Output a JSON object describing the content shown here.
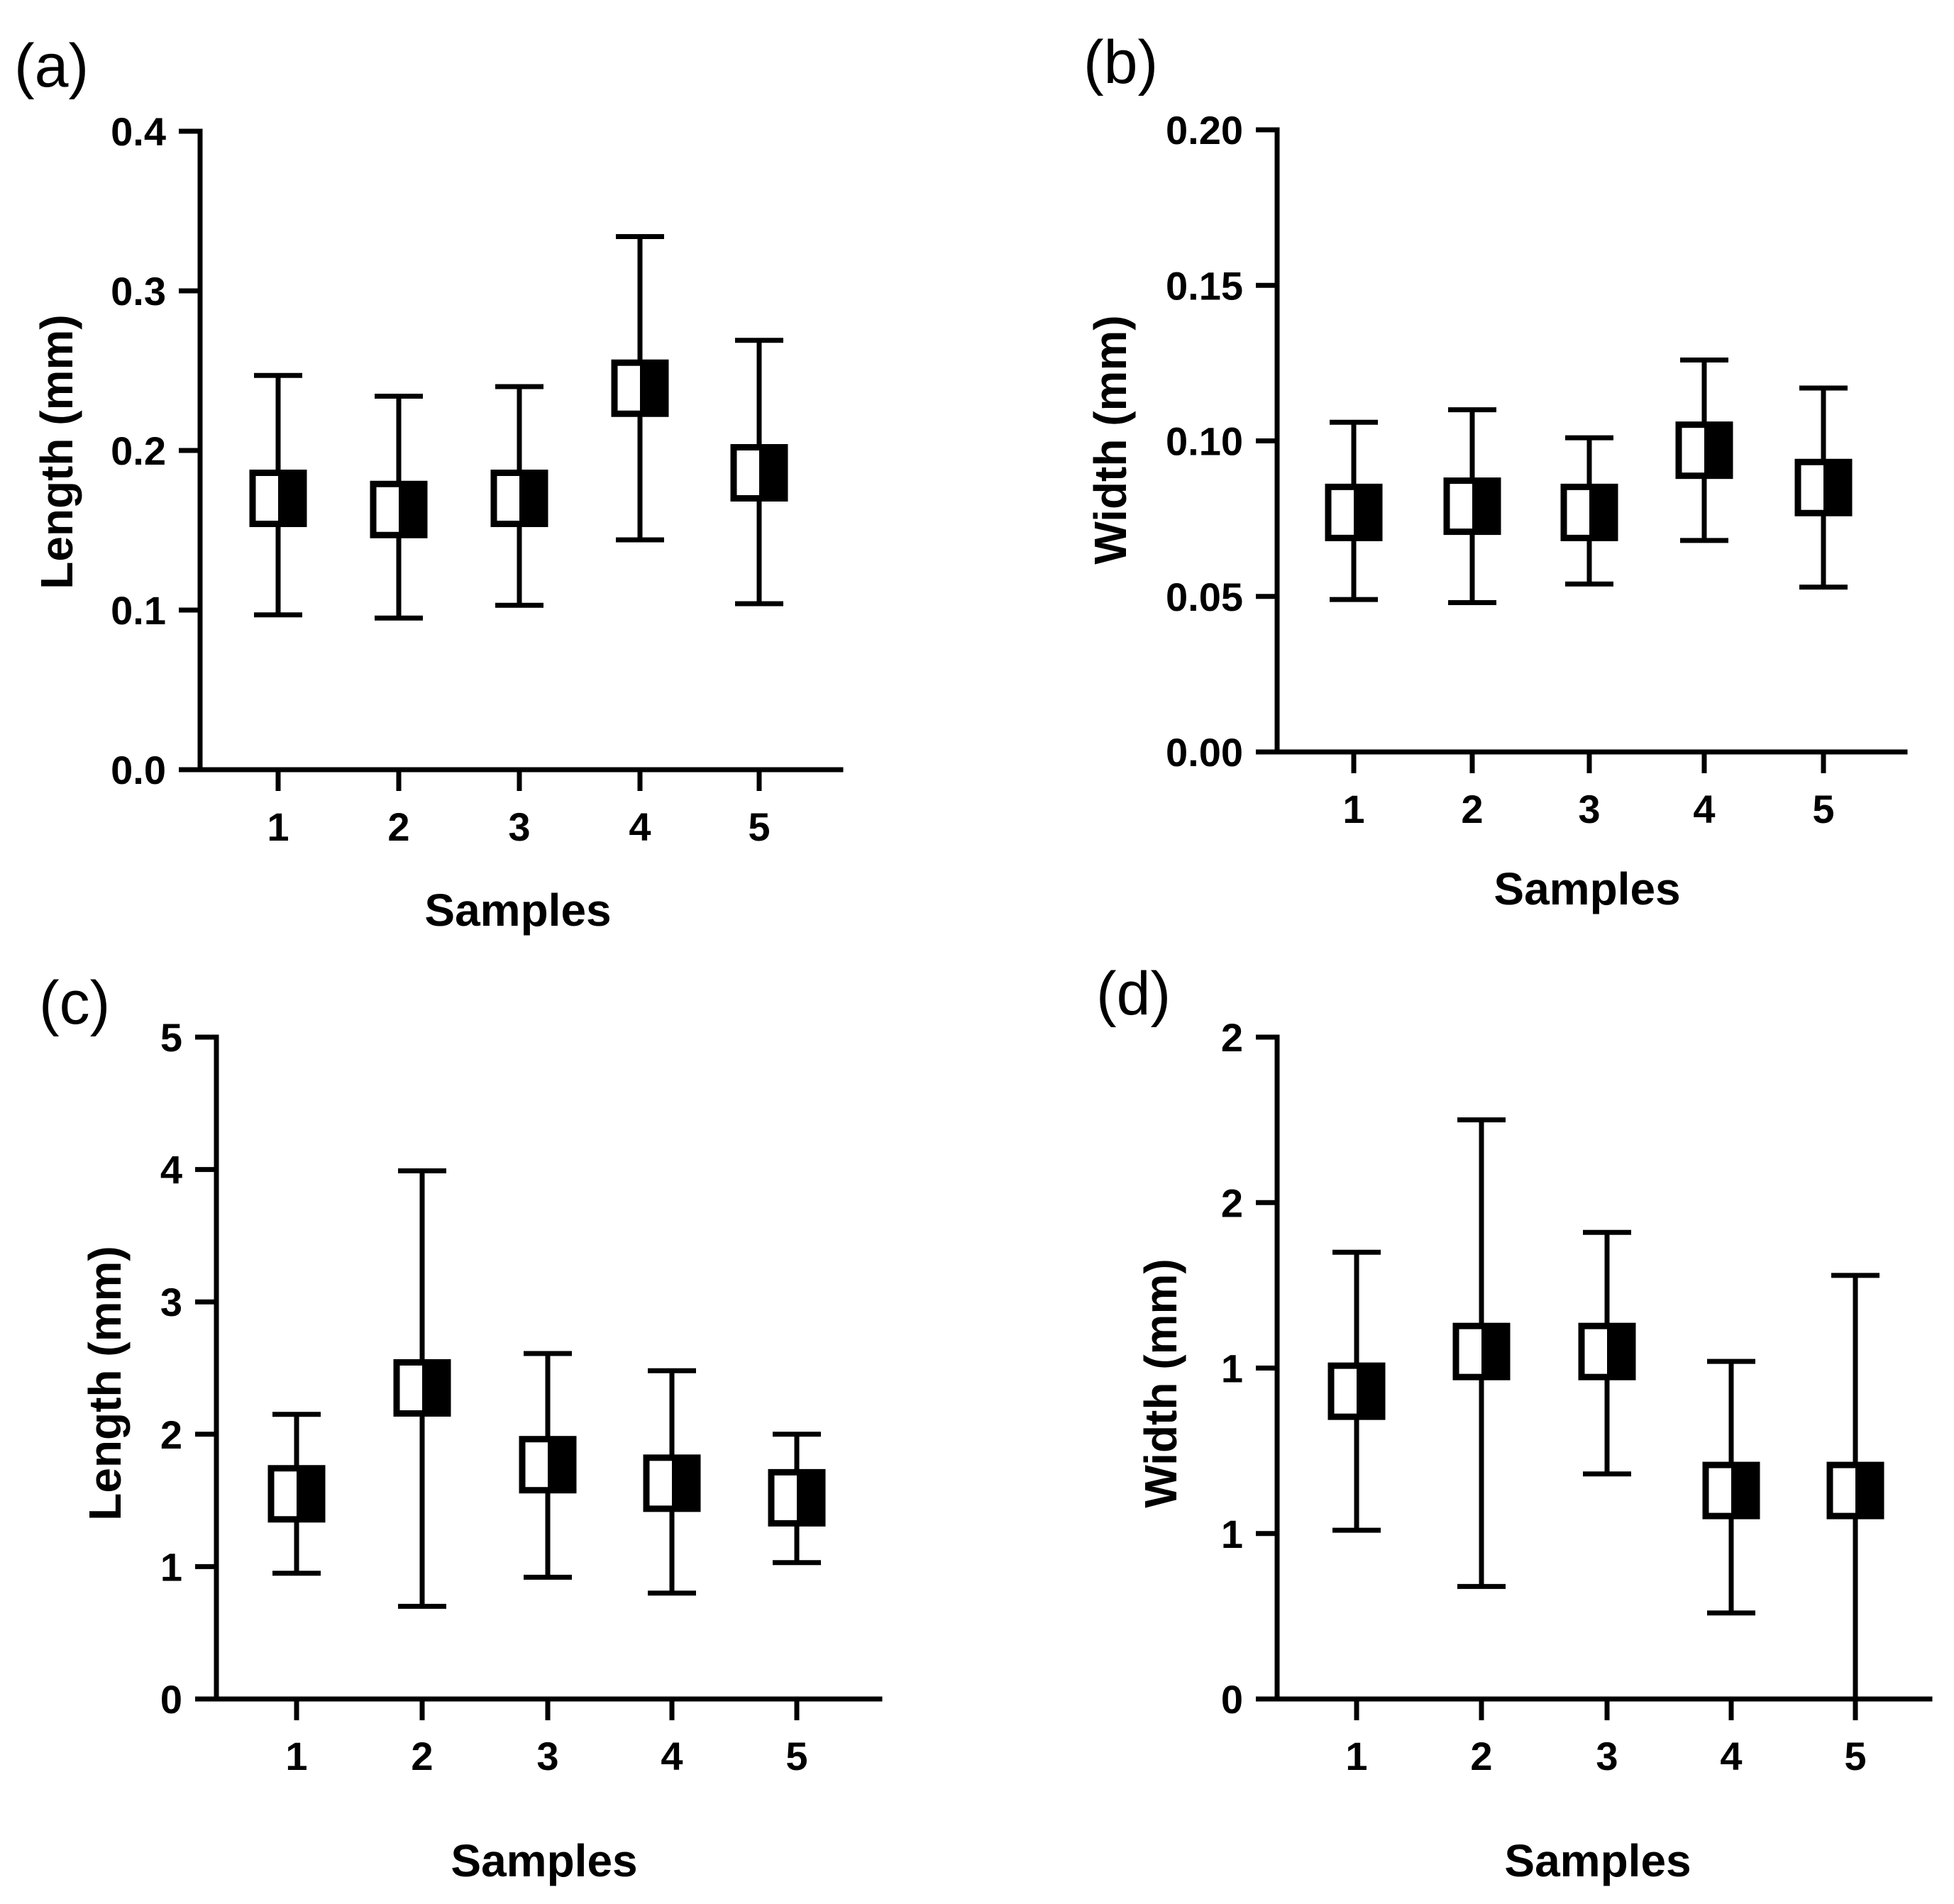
{
  "chart_data": [
    {
      "panel": "(a)",
      "type": "scatter",
      "xlabel": "Samples",
      "ylabel": "Length (mm)",
      "categories": [
        "1",
        "2",
        "3",
        "4",
        "5"
      ],
      "values": [
        0.17,
        0.163,
        0.17,
        0.239,
        0.186
      ],
      "err_low": [
        0.097,
        0.095,
        0.103,
        0.144,
        0.104
      ],
      "err_high": [
        0.247,
        0.234,
        0.24,
        0.334,
        0.269
      ],
      "ylim": [
        0.0,
        0.4
      ],
      "yticks": [
        0.0,
        0.1,
        0.2,
        0.3,
        0.4
      ],
      "ytick_labels": [
        "0.0",
        "0.1",
        "0.2",
        "0.3",
        "0.4"
      ]
    },
    {
      "panel": "(b)",
      "type": "scatter",
      "xlabel": "Samples",
      "ylabel": "Width (mm)",
      "categories": [
        "1",
        "2",
        "3",
        "4",
        "5"
      ],
      "values": [
        0.077,
        0.079,
        0.077,
        0.097,
        0.085
      ],
      "err_low": [
        0.049,
        0.048,
        0.054,
        0.068,
        0.053
      ],
      "err_high": [
        0.106,
        0.11,
        0.101,
        0.126,
        0.117
      ],
      "ylim": [
        0.0,
        0.2
      ],
      "yticks": [
        0.0,
        0.05,
        0.1,
        0.15,
        0.2
      ],
      "ytick_labels": [
        "0.00",
        "0.05",
        "0.10",
        "0.15",
        "0.20"
      ]
    },
    {
      "panel": "(c)",
      "type": "scatter",
      "xlabel": "Samples",
      "ylabel": "Length (mm)",
      "categories": [
        "1",
        "2",
        "3",
        "4",
        "5"
      ],
      "values": [
        1.55,
        2.35,
        1.77,
        1.63,
        1.52
      ],
      "err_low": [
        0.95,
        0.7,
        0.92,
        0.8,
        1.03
      ],
      "err_high": [
        2.15,
        3.99,
        2.61,
        2.48,
        2.0
      ],
      "ylim": [
        0,
        5
      ],
      "yticks": [
        0,
        1,
        2,
        3,
        4,
        5
      ],
      "ytick_labels": [
        "0",
        "1",
        "2",
        "3",
        "4",
        "5"
      ]
    },
    {
      "panel": "(d)",
      "type": "scatter",
      "xlabel": "Samples",
      "ylabel": "Width (mm)",
      "categories": [
        "1",
        "2",
        "3",
        "4",
        "5"
      ],
      "values": [
        0.93,
        1.05,
        1.05,
        0.63,
        0.63
      ],
      "err_low": [
        0.51,
        0.34,
        0.68,
        0.26,
        0.0
      ],
      "err_high": [
        1.35,
        1.75,
        1.41,
        1.02,
        1.28
      ],
      "ylim": [
        0,
        2
      ],
      "yticks": [
        0,
        0.5,
        1.0,
        1.5,
        2.0
      ],
      "ytick_labels": [
        "0",
        "1",
        "1",
        "2",
        "2"
      ]
    }
  ]
}
